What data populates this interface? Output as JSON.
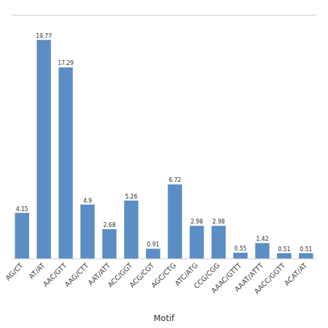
{
  "chart_data": {
    "type": "bar",
    "categories": [
      "AG/CT",
      "AT/AT",
      "AAC/GTT",
      "AAG/CTT",
      "AAT/ATT",
      "ACC/GGT",
      "ACG/CGT",
      "AGC/CTG",
      "ATC/ATG",
      "CCG/CGG",
      "AAAC/GTTT",
      "AAAT/ATTT",
      "AACC/GGTT",
      "ACAT/AT"
    ],
    "values": [
      4.15,
      19.77,
      17.29,
      4.9,
      2.68,
      5.26,
      0.91,
      6.72,
      2.98,
      2.98,
      0.55,
      1.42,
      0.51,
      0.51
    ],
    "color": "#5b8ec4",
    "xlabel": "Motif",
    "ylim": [
      0,
      22
    ],
    "data_labels": true,
    "tick_labels": "x",
    "grid": false
  }
}
